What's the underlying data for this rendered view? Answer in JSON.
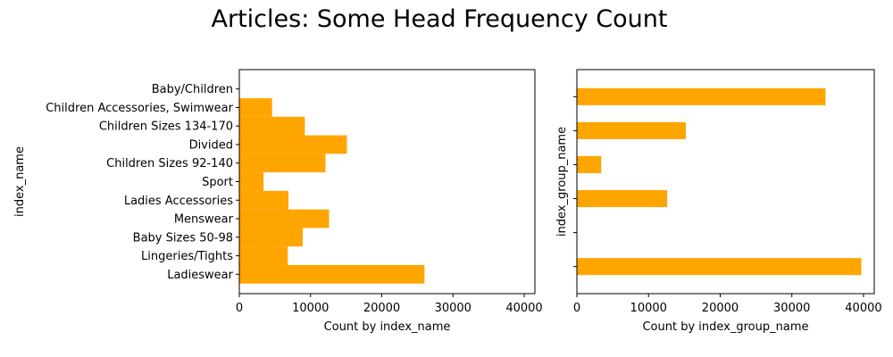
{
  "figure": {
    "title": "Articles: Some Head Frequency Count",
    "bar_color": "#ffa500"
  },
  "chart_data": [
    {
      "type": "bar",
      "orientation": "horizontal",
      "categories": [
        "Ladieswear",
        "Lingeries/Tights",
        "Baby Sizes 50-98",
        "Menswear",
        "Ladies Accessories",
        "Sport",
        "Children Sizes 92-140",
        "Divided",
        "Children Sizes 134-170",
        "Children Accessories, Swimwear",
        "Baby/Children"
      ],
      "values": [
        26000,
        6800,
        8900,
        12600,
        6900,
        3400,
        12100,
        15100,
        9200,
        4600,
        0
      ],
      "title": "",
      "xlabel": "Count by index_name",
      "ylabel": "index_name",
      "xlim": [
        0,
        41500
      ],
      "xticks": [
        0,
        10000,
        20000,
        30000,
        40000
      ],
      "tick_labels": [
        "0",
        "10000",
        "20000",
        "30000",
        "40000"
      ],
      "bar_height_fraction": 1.0,
      "grid": false,
      "legend": "none"
    },
    {
      "type": "bar",
      "orientation": "horizontal",
      "categories": [
        "",
        "",
        "",
        "",
        "",
        ""
      ],
      "values": [
        39700,
        0,
        12600,
        3400,
        15200,
        34700
      ],
      "title": "",
      "xlabel": "Count by index_group_name",
      "ylabel": "index_group_name",
      "xlim": [
        0,
        41500
      ],
      "xticks": [
        0,
        10000,
        20000,
        30000,
        40000
      ],
      "tick_labels": [
        "0",
        "10000",
        "20000",
        "30000",
        "40000"
      ],
      "bar_height_fraction": 0.5,
      "grid": false,
      "legend": "none"
    }
  ]
}
